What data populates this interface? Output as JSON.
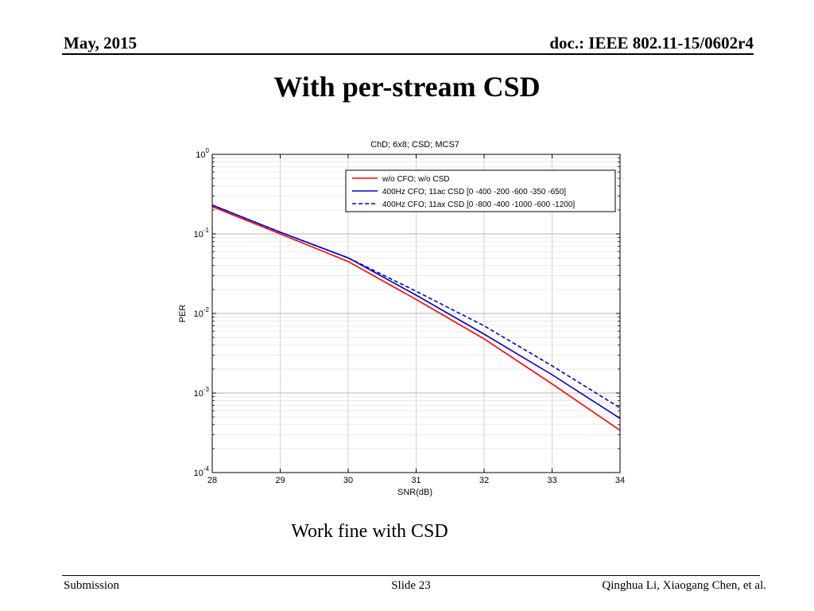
{
  "header": {
    "date": "May, 2015",
    "doc": "doc.: IEEE 802.11-15/0602r4"
  },
  "slide": {
    "title": "With per-stream CSD",
    "caption": "Work fine with CSD"
  },
  "footer": {
    "left": "Submission",
    "center": "Slide 23",
    "right": "Qinghua Li, Xiaogang Chen, et al."
  },
  "chart_data": {
    "type": "line",
    "title": "ChD; 6x8; CSD; MCS7",
    "xlabel": "SNR(dB)",
    "ylabel": "PER",
    "xlim": [
      28,
      34
    ],
    "ylim": [
      0.0001,
      1
    ],
    "yscale": "log",
    "grid": true,
    "legend_position": "top-right",
    "x_ticks": [
      "28",
      "29",
      "30",
      "31",
      "32",
      "33",
      "34"
    ],
    "y_ticks": [
      {
        "value": 1,
        "base": "10",
        "exp": "0"
      },
      {
        "value": 0.1,
        "base": "10",
        "exp": "-1"
      },
      {
        "value": 0.01,
        "base": "10",
        "exp": "-2"
      },
      {
        "value": 0.001,
        "base": "10",
        "exp": "-3"
      },
      {
        "value": 0.0001,
        "base": "10",
        "exp": "-4"
      }
    ],
    "x": [
      28,
      29,
      30,
      31,
      32,
      33,
      34
    ],
    "series": [
      {
        "name": "w/o CFO; w/o CSD",
        "color": "#ff0000",
        "style": "solid",
        "values": [
          0.22,
          0.1,
          0.045,
          0.015,
          0.0048,
          0.0013,
          0.00034
        ]
      },
      {
        "name": "400Hz CFO;  11ac CSD [0 -400 -200 -600 -350 -650]",
        "color": "#0000c8",
        "style": "solid",
        "values": [
          0.23,
          0.105,
          0.05,
          0.017,
          0.0055,
          0.0017,
          0.00048
        ]
      },
      {
        "name": "400Hz CFO;  11ax CSD [0 -800 -400 -1000 -600 -1200]",
        "color": "#0000c8",
        "style": "dashed",
        "values": [
          0.23,
          0.105,
          0.05,
          0.019,
          0.007,
          0.0022,
          0.00065
        ]
      }
    ]
  }
}
